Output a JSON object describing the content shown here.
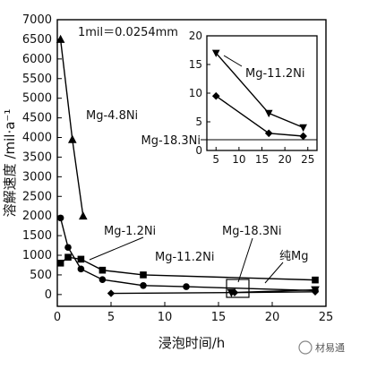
{
  "chart_data": [
    {
      "type": "line",
      "title": "",
      "xlabel": "浸泡时间/h",
      "ylabel": "溶解速度 /mil·a⁻¹",
      "xlim": [
        0,
        25
      ],
      "ylim": [
        -300,
        7000
      ],
      "x_ticks": [
        "0",
        "5",
        "10",
        "15",
        "20",
        "25"
      ],
      "y_ticks": [
        "0",
        "500",
        "1000",
        "1500",
        "2000",
        "2500",
        "3000",
        "3500",
        "4000",
        "4500",
        "5000",
        "5500",
        "6000",
        "6500",
        "7000"
      ],
      "grid": false,
      "legend": "none",
      "annotation": "1mil＝0.0254mm",
      "series": [
        {
          "name": "Mg-4.8Ni",
          "marker": "triangle-up",
          "x": [
            0.3,
            1.4,
            2.4
          ],
          "y": [
            6500,
            3950,
            2000
          ]
        },
        {
          "name": "Mg-1.2Ni",
          "marker": "circle",
          "x": [
            0.3,
            1.0,
            2.2,
            4.2,
            8.0,
            12.0,
            24.0
          ],
          "y": [
            1950,
            1200,
            650,
            380,
            230,
            200,
            100
          ]
        },
        {
          "name": "纯Mg",
          "marker": "square",
          "x": [
            0.3,
            1.0,
            2.2,
            4.2,
            8.0,
            24.0
          ],
          "y": [
            800,
            950,
            900,
            620,
            500,
            370
          ]
        },
        {
          "name": "Mg-18.3Ni",
          "marker": "diamond",
          "x": [
            5.0,
            16.5,
            24.0
          ],
          "y": [
            30,
            50,
            70
          ]
        },
        {
          "name": "Mg-11.2Ni",
          "marker": "triangle-down",
          "x": [
            16.2,
            24.0
          ],
          "y": [
            50,
            120
          ]
        }
      ]
    },
    {
      "type": "line",
      "title": "",
      "xlim": [
        3,
        27
      ],
      "ylim": [
        0,
        20
      ],
      "x_ticks": [
        "5",
        "10",
        "15",
        "20",
        "25"
      ],
      "y_ticks": [
        "0",
        "5",
        "10",
        "15",
        "20"
      ],
      "grid": false,
      "series": [
        {
          "name": "Mg-11.2Ni",
          "marker": "triangle-down",
          "x": [
            5,
            16.5,
            24
          ],
          "y": [
            17,
            6.5,
            4
          ]
        },
        {
          "name": "Mg-18.3Ni",
          "marker": "diamond",
          "x": [
            5,
            16.5,
            24
          ],
          "y": [
            9.5,
            3,
            2.5
          ]
        }
      ]
    }
  ],
  "watermark": "材易通"
}
